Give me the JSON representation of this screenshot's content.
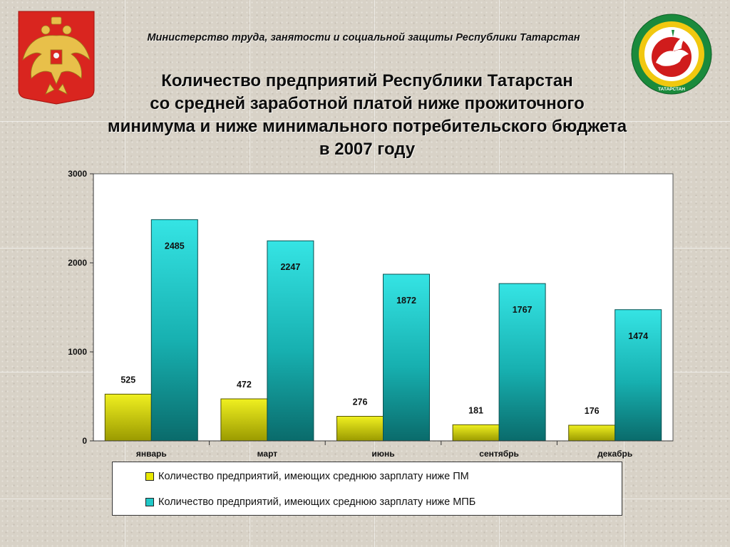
{
  "header": {
    "ministry": "Министерство  труда,  занятости и социальной защиты Республики Татарстан",
    "title_lines": [
      "Количество предприятий Республики Татарстан",
      "со средней заработной платой ниже прожиточного",
      "минимума и ниже минимального потребительского бюджета",
      "в 2007 году"
    ]
  },
  "logos": {
    "left": "russia-coat-of-arms",
    "right": "tatarstan-emblem",
    "right_text": "ТАТАРСТАН"
  },
  "colors": {
    "series1": "#e8e800",
    "series2": "#20c8c8",
    "coat_red": "#d9251f",
    "emblem_green": "#1a8a3c",
    "emblem_red": "#d01c1c"
  },
  "chart_data": {
    "type": "bar",
    "categories": [
      "январь",
      "март",
      "июнь",
      "сентябрь",
      "декабрь"
    ],
    "series": [
      {
        "name": "Количество предприятий, имеющих среднюю зарплату ниже ПМ",
        "values": [
          525,
          472,
          276,
          181,
          176
        ]
      },
      {
        "name": "Количество предприятий, имеющих среднюю зарплату ниже МПБ",
        "values": [
          2485,
          2247,
          1872,
          1767,
          1474
        ]
      }
    ],
    "ylim": [
      0,
      3000
    ],
    "yticks": [
      0,
      1000,
      2000,
      3000
    ],
    "data_labels": true,
    "legend": "bottom",
    "grid": false
  }
}
